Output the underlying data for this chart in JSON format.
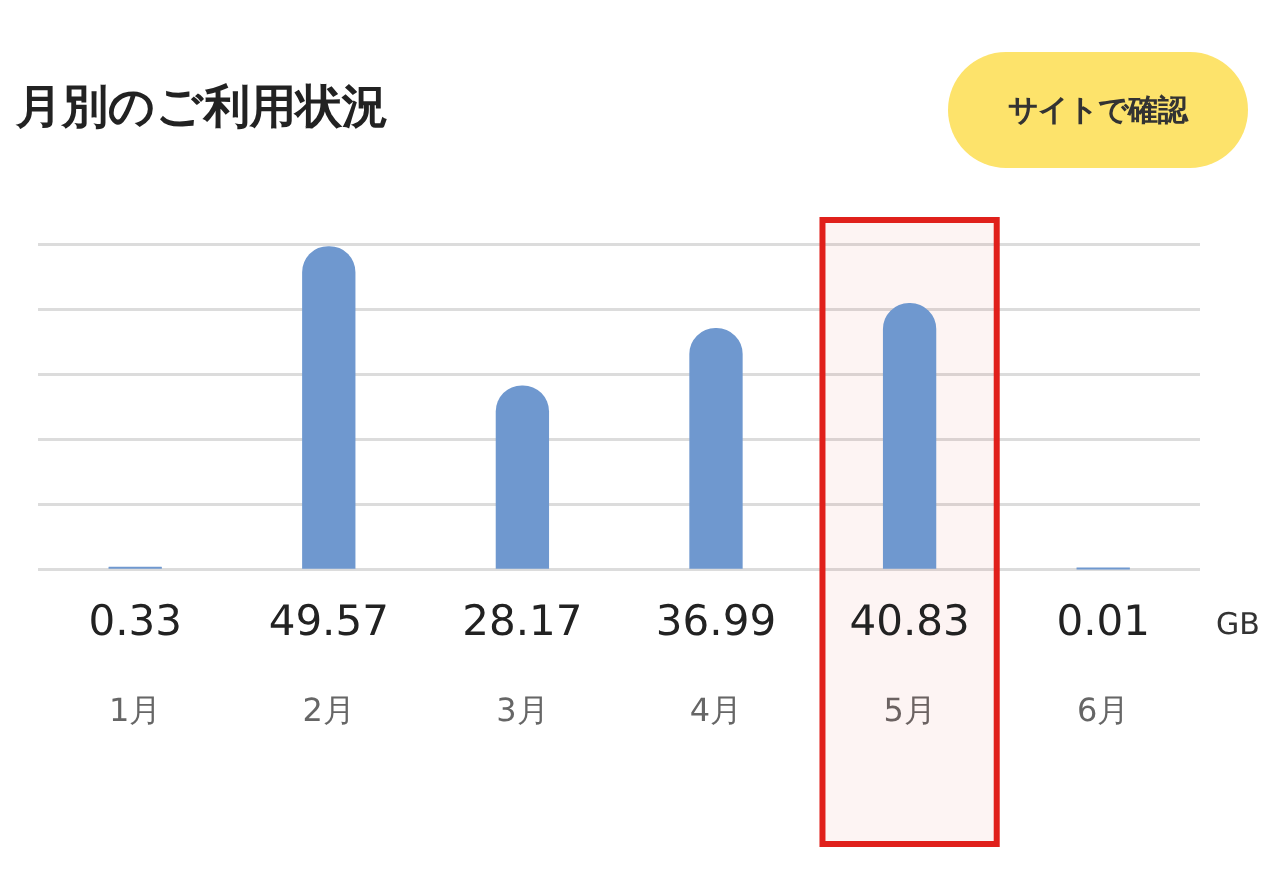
{
  "chart_data": {
    "type": "bar",
    "title": "月別のご利用状況",
    "categories": [
      "1月",
      "2月",
      "3月",
      "4月",
      "5月",
      "6月"
    ],
    "values": [
      0.33,
      49.57,
      28.17,
      36.99,
      40.83,
      0.01
    ],
    "color": "#6f98cf",
    "ylim": [
      0,
      50
    ],
    "yticks": [
      {
        "value": 0,
        "label": null
      },
      {
        "value": 10,
        "label": null
      },
      {
        "value": 20,
        "label": null
      },
      {
        "value": 30,
        "label": null
      },
      {
        "value": 40,
        "label": null
      },
      {
        "value": 50,
        "label": null
      }
    ],
    "grid": "y",
    "legend": false,
    "tick_labels": "x",
    "data_labels": true,
    "bands": [
      {
        "axis": "x",
        "from": "5月",
        "to": "5月",
        "color": "#e0201b"
      }
    ],
    "annotations": [
      "GB",
      "サイトで確認"
    ]
  }
}
